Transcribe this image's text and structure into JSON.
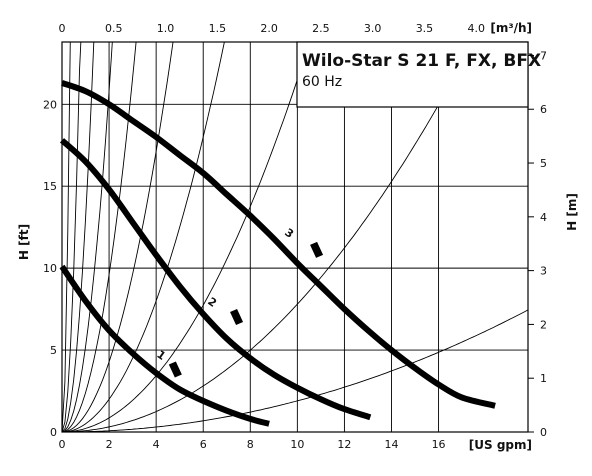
{
  "chart_data": {
    "type": "line",
    "title": "Wilo-Star S 21 F, FX, BFX",
    "subtitle": "60 Hz",
    "x_bottom": {
      "label": "[US gpm]",
      "range": [
        0,
        19.8
      ],
      "ticks": [
        "0",
        "2",
        "4",
        "6",
        "8",
        "10",
        "12",
        "14",
        "16"
      ]
    },
    "x_top": {
      "label": "[m³/h]",
      "range": [
        0,
        4.5
      ],
      "ticks": [
        "0",
        "0.5",
        "1.0",
        "1.5",
        "2.0",
        "2.5",
        "3.0",
        "3.5",
        "4.0"
      ]
    },
    "y_left": {
      "label": "H [ft]",
      "range": [
        0,
        23.8
      ],
      "ticks": [
        "0",
        "5",
        "10",
        "15",
        "20"
      ]
    },
    "y_right": {
      "label": "H [m]",
      "range": [
        0,
        7.25
      ],
      "ticks": [
        "0",
        "1",
        "2",
        "3",
        "4",
        "5",
        "6",
        "7"
      ]
    },
    "grid": true,
    "series": [
      {
        "name": "1",
        "x": [
          0,
          1,
          2,
          3,
          4,
          5,
          6,
          7,
          8,
          8.8
        ],
        "y": [
          10.1,
          8.0,
          6.2,
          4.8,
          3.6,
          2.6,
          1.9,
          1.3,
          0.8,
          0.5
        ]
      },
      {
        "name": "2",
        "x": [
          0,
          1,
          2,
          3,
          4,
          5,
          6,
          7,
          8,
          9,
          10,
          11,
          12,
          13.1
        ],
        "y": [
          17.8,
          16.5,
          14.8,
          12.8,
          10.8,
          8.9,
          7.2,
          5.7,
          4.5,
          3.5,
          2.7,
          2.0,
          1.4,
          0.9
        ]
      },
      {
        "name": "3",
        "x": [
          0,
          1,
          2,
          3,
          4,
          5,
          6,
          7,
          8,
          9,
          10,
          11,
          12,
          13,
          14,
          15,
          16,
          17,
          18.4
        ],
        "y": [
          21.3,
          20.8,
          20.0,
          19.0,
          18.0,
          16.9,
          15.8,
          14.5,
          13.2,
          11.8,
          10.3,
          8.9,
          7.5,
          6.2,
          5.0,
          3.9,
          2.9,
          2.1,
          1.6
        ]
      }
    ],
    "system_curves_k": [
      200,
      40,
      13,
      5.2,
      2.4,
      1.07,
      0.5,
      0.215,
      0.078,
      0.019
    ],
    "curve_labels": [
      "1",
      "2",
      "3"
    ]
  }
}
